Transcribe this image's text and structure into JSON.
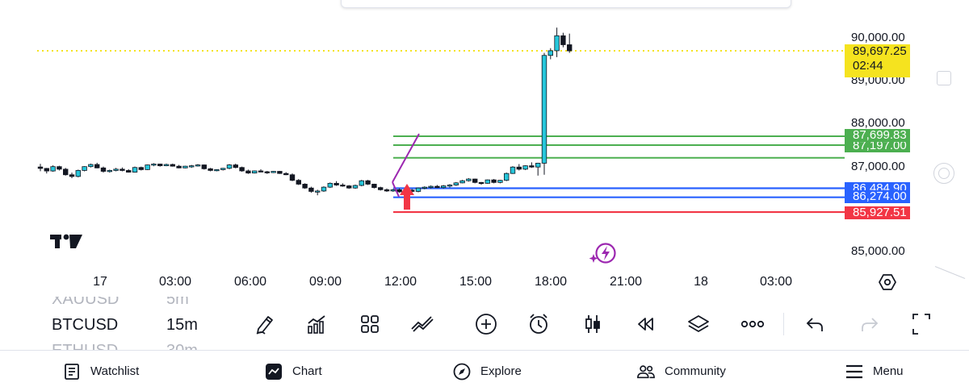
{
  "chart": {
    "current_price": "89,697.25",
    "countdown": "02:44",
    "x_labels": [
      "17",
      "03:00",
      "06:00",
      "09:00",
      "12:00",
      "15:00",
      "18:00",
      "21:00",
      "18",
      "03:00"
    ],
    "y_labels": [
      "90,000.00",
      "89,000.00",
      "88,000.00",
      "87,000.00",
      "85,000.00"
    ],
    "price_tags": [
      {
        "text": "89,697.25",
        "color": "#f5e31f"
      },
      {
        "text": "87,699.83",
        "color": "#4caf50"
      },
      {
        "text": "87,197.00",
        "color": "#4caf50"
      },
      {
        "text": "86,484.90",
        "color": "#2962ff"
      },
      {
        "text": "86,274.00",
        "color": "#2962ff"
      },
      {
        "text": "85,927.51",
        "color": "#f23645"
      }
    ],
    "colors": {
      "up": "#26c6da",
      "down": "#131722",
      "green_line": "#4caf50",
      "blue_line": "#2962ff",
      "red_line": "#f23645",
      "last_price": "#f5e31f",
      "purple": "#9c27b0",
      "arrow": "#f23645"
    },
    "candles": [
      [
        86982,
        87055,
        86883,
        86948
      ],
      [
        86948,
        86960,
        86830,
        86888
      ],
      [
        86888,
        87020,
        86870,
        86990
      ],
      [
        86990,
        87010,
        86900,
        86930
      ],
      [
        86930,
        86960,
        86780,
        86800
      ],
      [
        86800,
        86850,
        86720,
        86760
      ],
      [
        86760,
        86920,
        86740,
        86900
      ],
      [
        86900,
        87000,
        86880,
        86990
      ],
      [
        86990,
        87060,
        86970,
        87040
      ],
      [
        87040,
        87080,
        86950,
        86960
      ],
      [
        86960,
        86990,
        86850,
        86880
      ],
      [
        86880,
        86920,
        86850,
        86900
      ],
      [
        86900,
        86960,
        86880,
        86930
      ],
      [
        86930,
        86970,
        86880,
        86900
      ],
      [
        86900,
        86930,
        86850,
        86860
      ],
      [
        86860,
        86990,
        86850,
        86970
      ],
      [
        86970,
        86990,
        86900,
        86920
      ],
      [
        86920,
        87040,
        86910,
        87030
      ],
      [
        87030,
        87070,
        87000,
        87050
      ],
      [
        87050,
        87060,
        86990,
        87010
      ],
      [
        87010,
        87060,
        87000,
        87040
      ],
      [
        87040,
        87060,
        86990,
        87000
      ],
      [
        87000,
        87030,
        86950,
        86960
      ],
      [
        86960,
        87010,
        86950,
        87000
      ],
      [
        87000,
        87030,
        86960,
        87010
      ],
      [
        87010,
        87050,
        86990,
        87030
      ],
      [
        87030,
        87040,
        86920,
        86940
      ],
      [
        86940,
        86960,
        86880,
        86900
      ],
      [
        86900,
        86930,
        86880,
        86920
      ],
      [
        86920,
        86960,
        86900,
        86950
      ],
      [
        86950,
        87050,
        86930,
        87030
      ],
      [
        87030,
        87060,
        86950,
        86970
      ],
      [
        86970,
        86990,
        86870,
        86890
      ],
      [
        86890,
        86920,
        86820,
        86840
      ],
      [
        86840,
        86900,
        86830,
        86890
      ],
      [
        86890,
        86930,
        86860,
        86870
      ],
      [
        86870,
        86890,
        86820,
        86850
      ],
      [
        86850,
        86890,
        86840,
        86880
      ],
      [
        86880,
        86890,
        86820,
        86830
      ],
      [
        86830,
        86860,
        86790,
        86800
      ],
      [
        86800,
        86830,
        86650,
        86670
      ],
      [
        86670,
        86700,
        86560,
        86580
      ],
      [
        86580,
        86600,
        86470,
        86490
      ],
      [
        86490,
        86520,
        86380,
        86410
      ],
      [
        86410,
        86450,
        86320,
        86420
      ],
      [
        86420,
        86530,
        86400,
        86510
      ],
      [
        86510,
        86620,
        86490,
        86600
      ],
      [
        86600,
        86650,
        86540,
        86560
      ],
      [
        86560,
        86600,
        86520,
        86540
      ],
      [
        86540,
        86560,
        86470,
        86490
      ],
      [
        86490,
        86570,
        86470,
        86550
      ],
      [
        86550,
        86680,
        86530,
        86660
      ],
      [
        86660,
        86680,
        86560,
        86580
      ],
      [
        86580,
        86590,
        86480,
        86500
      ],
      [
        86500,
        86520,
        86430,
        86450
      ],
      [
        86450,
        86480,
        86400,
        86420
      ],
      [
        86420,
        86470,
        86400,
        86450
      ],
      [
        86450,
        86480,
        86380,
        86400
      ],
      [
        86400,
        86450,
        86390,
        86440
      ],
      [
        86440,
        86470,
        86390,
        86410
      ],
      [
        86410,
        86500,
        86390,
        86490
      ],
      [
        86490,
        86530,
        86460,
        86510
      ],
      [
        86510,
        86550,
        86480,
        86530
      ],
      [
        86530,
        86560,
        86490,
        86500
      ],
      [
        86500,
        86560,
        86480,
        86540
      ],
      [
        86540,
        86580,
        86500,
        86560
      ],
      [
        86560,
        86630,
        86540,
        86610
      ],
      [
        86610,
        86680,
        86600,
        86660
      ],
      [
        86660,
        86720,
        86640,
        86700
      ],
      [
        86700,
        86710,
        86600,
        86620
      ],
      [
        86620,
        86630,
        86570,
        86600
      ],
      [
        86600,
        86690,
        86590,
        86680
      ],
      [
        86680,
        86700,
        86600,
        86620
      ],
      [
        86620,
        86680,
        86600,
        86670
      ],
      [
        86670,
        86850,
        86650,
        86830
      ],
      [
        86830,
        87000,
        86820,
        86980
      ],
      [
        86980,
        87050,
        86900,
        86930
      ],
      [
        86930,
        87020,
        86910,
        87010
      ],
      [
        87010,
        87090,
        86960,
        86980
      ],
      [
        86980,
        87080,
        86780,
        87070
      ],
      [
        87070,
        89650,
        86800,
        89590
      ],
      [
        89590,
        89760,
        89500,
        89700
      ],
      [
        89700,
        90240,
        89550,
        90050
      ],
      [
        90050,
        90120,
        89780,
        89840
      ],
      [
        89840,
        90100,
        89650,
        89697.25
      ]
    ]
  },
  "toolbar": {
    "symbol_prev": "XAUUSD",
    "symbol": "BTCUSD",
    "symbol_next": "ETHUSD",
    "timeframe_prev": "5m",
    "timeframe": "15m",
    "timeframe_next": "30m",
    "icons": [
      "pencil-icon",
      "indicators-icon",
      "layouts-icon",
      "compare-icon",
      "add-icon",
      "alert-icon",
      "candles-icon",
      "replay-icon",
      "layers-icon",
      "more-icon",
      "undo-icon",
      "redo-icon",
      "fullscreen-icon"
    ]
  },
  "nav": {
    "watchlist": "Watchlist",
    "chart": "Chart",
    "explore": "Explore",
    "community": "Community",
    "menu": "Menu"
  }
}
